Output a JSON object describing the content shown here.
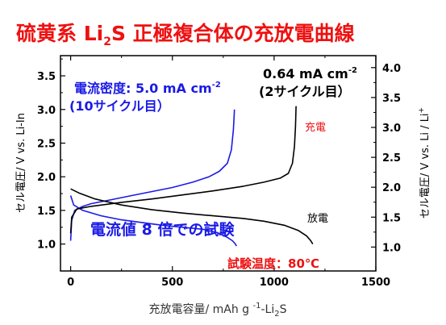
{
  "title": {
    "pre": "硫黄系 Li",
    "sub": "2",
    "post": "S 正極複合体の充放電曲線"
  },
  "colors": {
    "title": "#ee1111",
    "blue": "#1a1ae6",
    "black": "#000000",
    "red": "#ee1111"
  },
  "annotations": {
    "blue_rate": "電流密度: 5.0 mA cm",
    "blue_rate_sup": "-2",
    "blue_cycle": "(10サイクル目）",
    "black_rate": "0.64 mA cm",
    "black_rate_sup": "-2",
    "black_cycle": "(2サイクル目）",
    "charge": "充電",
    "discharge": "放電",
    "rate_note": "電流値 8 倍での試験",
    "temperature": "試験温度：80℃"
  },
  "chart_data": {
    "type": "line",
    "xlabel": "充放電容量/ mAh g -1-Li2S",
    "ylabel_left": "セル電圧/ V vs. Li-In",
    "ylabel_right": "セル電圧/ V vs. Li / Li+",
    "xlim": [
      -50,
      1500
    ],
    "ylim_left": [
      0.6,
      3.8
    ],
    "ylim_right": [
      0.6,
      4.2
    ],
    "right_offset": 0.62,
    "x_ticks": [
      0,
      500,
      1000,
      1500
    ],
    "y_ticks_left": [
      1.0,
      1.5,
      2.0,
      2.5,
      3.0,
      3.5
    ],
    "y_ticks_right": [
      1.0,
      1.5,
      2.0,
      2.5,
      3.0,
      3.5,
      4.0
    ],
    "series": [
      {
        "color": "#1a1ae6",
        "segments": [
          {
            "label": "charge",
            "points": [
              [
                0,
                1.05
              ],
              [
                5,
                1.35
              ],
              [
                20,
                1.5
              ],
              [
                60,
                1.56
              ],
              [
                100,
                1.6
              ],
              [
                200,
                1.66
              ],
              [
                300,
                1.72
              ],
              [
                400,
                1.78
              ],
              [
                500,
                1.84
              ],
              [
                600,
                1.92
              ],
              [
                680,
                2.0
              ],
              [
                730,
                2.08
              ],
              [
                770,
                2.2
              ],
              [
                790,
                2.4
              ],
              [
                800,
                2.7
              ],
              [
                805,
                3.0
              ]
            ]
          },
          {
            "label": "discharge",
            "points": [
              [
                0,
                1.72
              ],
              [
                15,
                1.58
              ],
              [
                60,
                1.5
              ],
              [
                150,
                1.42
              ],
              [
                250,
                1.36
              ],
              [
                350,
                1.32
              ],
              [
                450,
                1.28
              ],
              [
                550,
                1.25
              ],
              [
                650,
                1.22
              ],
              [
                720,
                1.17
              ],
              [
                770,
                1.1
              ],
              [
                795,
                1.05
              ],
              [
                810,
                1.0
              ],
              [
                815,
                0.97
              ]
            ]
          }
        ]
      },
      {
        "color": "#000000",
        "segments": [
          {
            "label": "charge",
            "points": [
              [
                0,
                1.16
              ],
              [
                5,
                1.4
              ],
              [
                30,
                1.52
              ],
              [
                100,
                1.56
              ],
              [
                250,
                1.62
              ],
              [
                400,
                1.67
              ],
              [
                550,
                1.73
              ],
              [
                700,
                1.79
              ],
              [
                850,
                1.86
              ],
              [
                950,
                1.92
              ],
              [
                1030,
                1.98
              ],
              [
                1070,
                2.05
              ],
              [
                1090,
                2.2
              ],
              [
                1100,
                2.45
              ],
              [
                1105,
                2.75
              ],
              [
                1108,
                3.05
              ]
            ]
          },
          {
            "label": "discharge",
            "points": [
              [
                0,
                1.82
              ],
              [
                40,
                1.76
              ],
              [
                120,
                1.67
              ],
              [
                250,
                1.58
              ],
              [
                400,
                1.51
              ],
              [
                550,
                1.46
              ],
              [
                700,
                1.42
              ],
              [
                850,
                1.38
              ],
              [
                950,
                1.34
              ],
              [
                1050,
                1.28
              ],
              [
                1120,
                1.2
              ],
              [
                1160,
                1.12
              ],
              [
                1180,
                1.05
              ],
              [
                1190,
                1.0
              ]
            ]
          }
        ]
      }
    ]
  }
}
